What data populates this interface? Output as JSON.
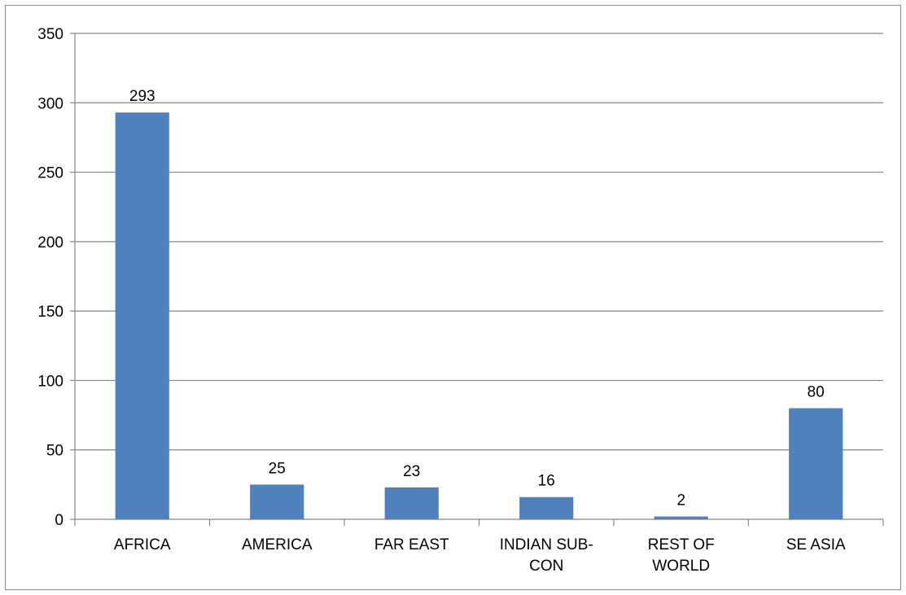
{
  "chart_data": {
    "type": "bar",
    "title": "",
    "xlabel": "",
    "ylabel": "",
    "categories": [
      [
        "AFRICA"
      ],
      [
        "AMERICA"
      ],
      [
        "FAR EAST"
      ],
      [
        "INDIAN SUB-",
        "CON"
      ],
      [
        "REST OF",
        "WORLD"
      ],
      [
        "SE ASIA"
      ]
    ],
    "values": [
      293,
      25,
      23,
      16,
      2,
      80
    ],
    "data_labels": [
      "293",
      "25",
      "23",
      "16",
      "2",
      "80"
    ],
    "ylim": [
      0,
      350
    ],
    "y_ticks": [
      0,
      50,
      100,
      150,
      200,
      250,
      300,
      350
    ],
    "grid": "horizontal",
    "legend": "none",
    "colors": {
      "bar": "#4f81bd",
      "grid": "#878787",
      "axis": "#878787",
      "text": "#000000"
    }
  }
}
